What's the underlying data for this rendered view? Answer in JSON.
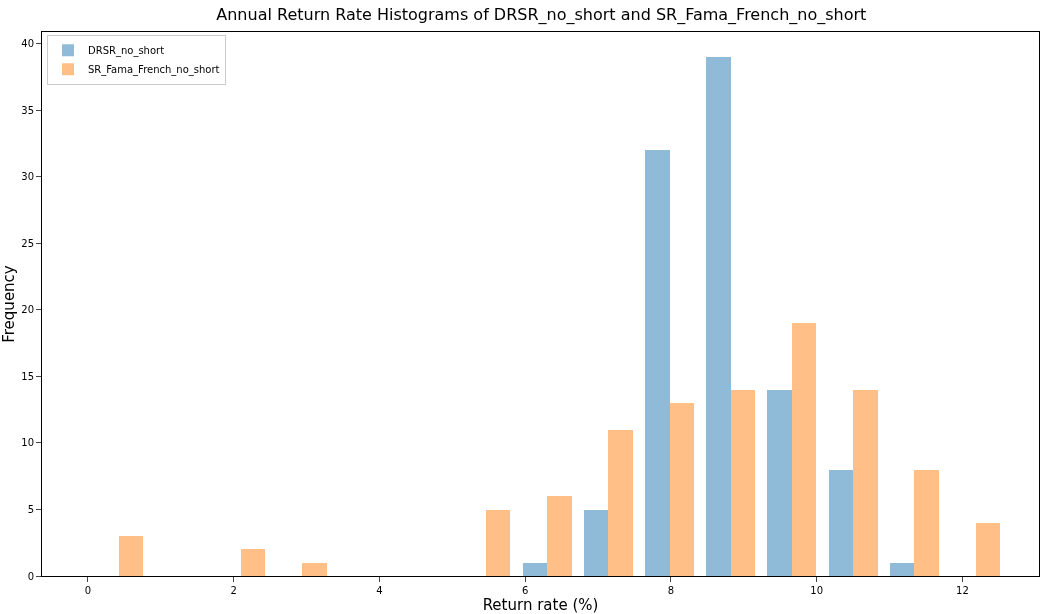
{
  "chart_data": {
    "type": "histogram",
    "title": "Annual Return Rate Histograms of DRSR_no_short and SR_Fama_French_no_short",
    "xlabel": "Return rate (%)",
    "ylabel": "Frequency",
    "bins": [
      0,
      0.84,
      1.68,
      2.52,
      3.36,
      4.2,
      5.04,
      5.88,
      6.72,
      7.56,
      8.4,
      9.24,
      10.08,
      10.92,
      11.76,
      12.6
    ],
    "series": [
      {
        "name": "DRSR_no_short",
        "color": "#8fbbd9",
        "values": [
          0,
          0,
          0,
          0,
          0,
          0,
          0,
          1,
          5,
          32,
          39,
          14,
          8,
          1,
          0
        ]
      },
      {
        "name": "SR_Fama_French_no_short",
        "color": "#ffbf86",
        "values": [
          3,
          0,
          2,
          1,
          0,
          0,
          5,
          6,
          11,
          13,
          14,
          19,
          14,
          8,
          4
        ]
      }
    ],
    "xlim": [
      -0.63,
      13.05
    ],
    "ylim": [
      0,
      40.9
    ],
    "xticks": [
      0,
      2,
      4,
      6,
      8,
      10,
      12
    ],
    "yticks": [
      0,
      5,
      10,
      15,
      20,
      25,
      30,
      35,
      40
    ],
    "legend": "top left"
  }
}
